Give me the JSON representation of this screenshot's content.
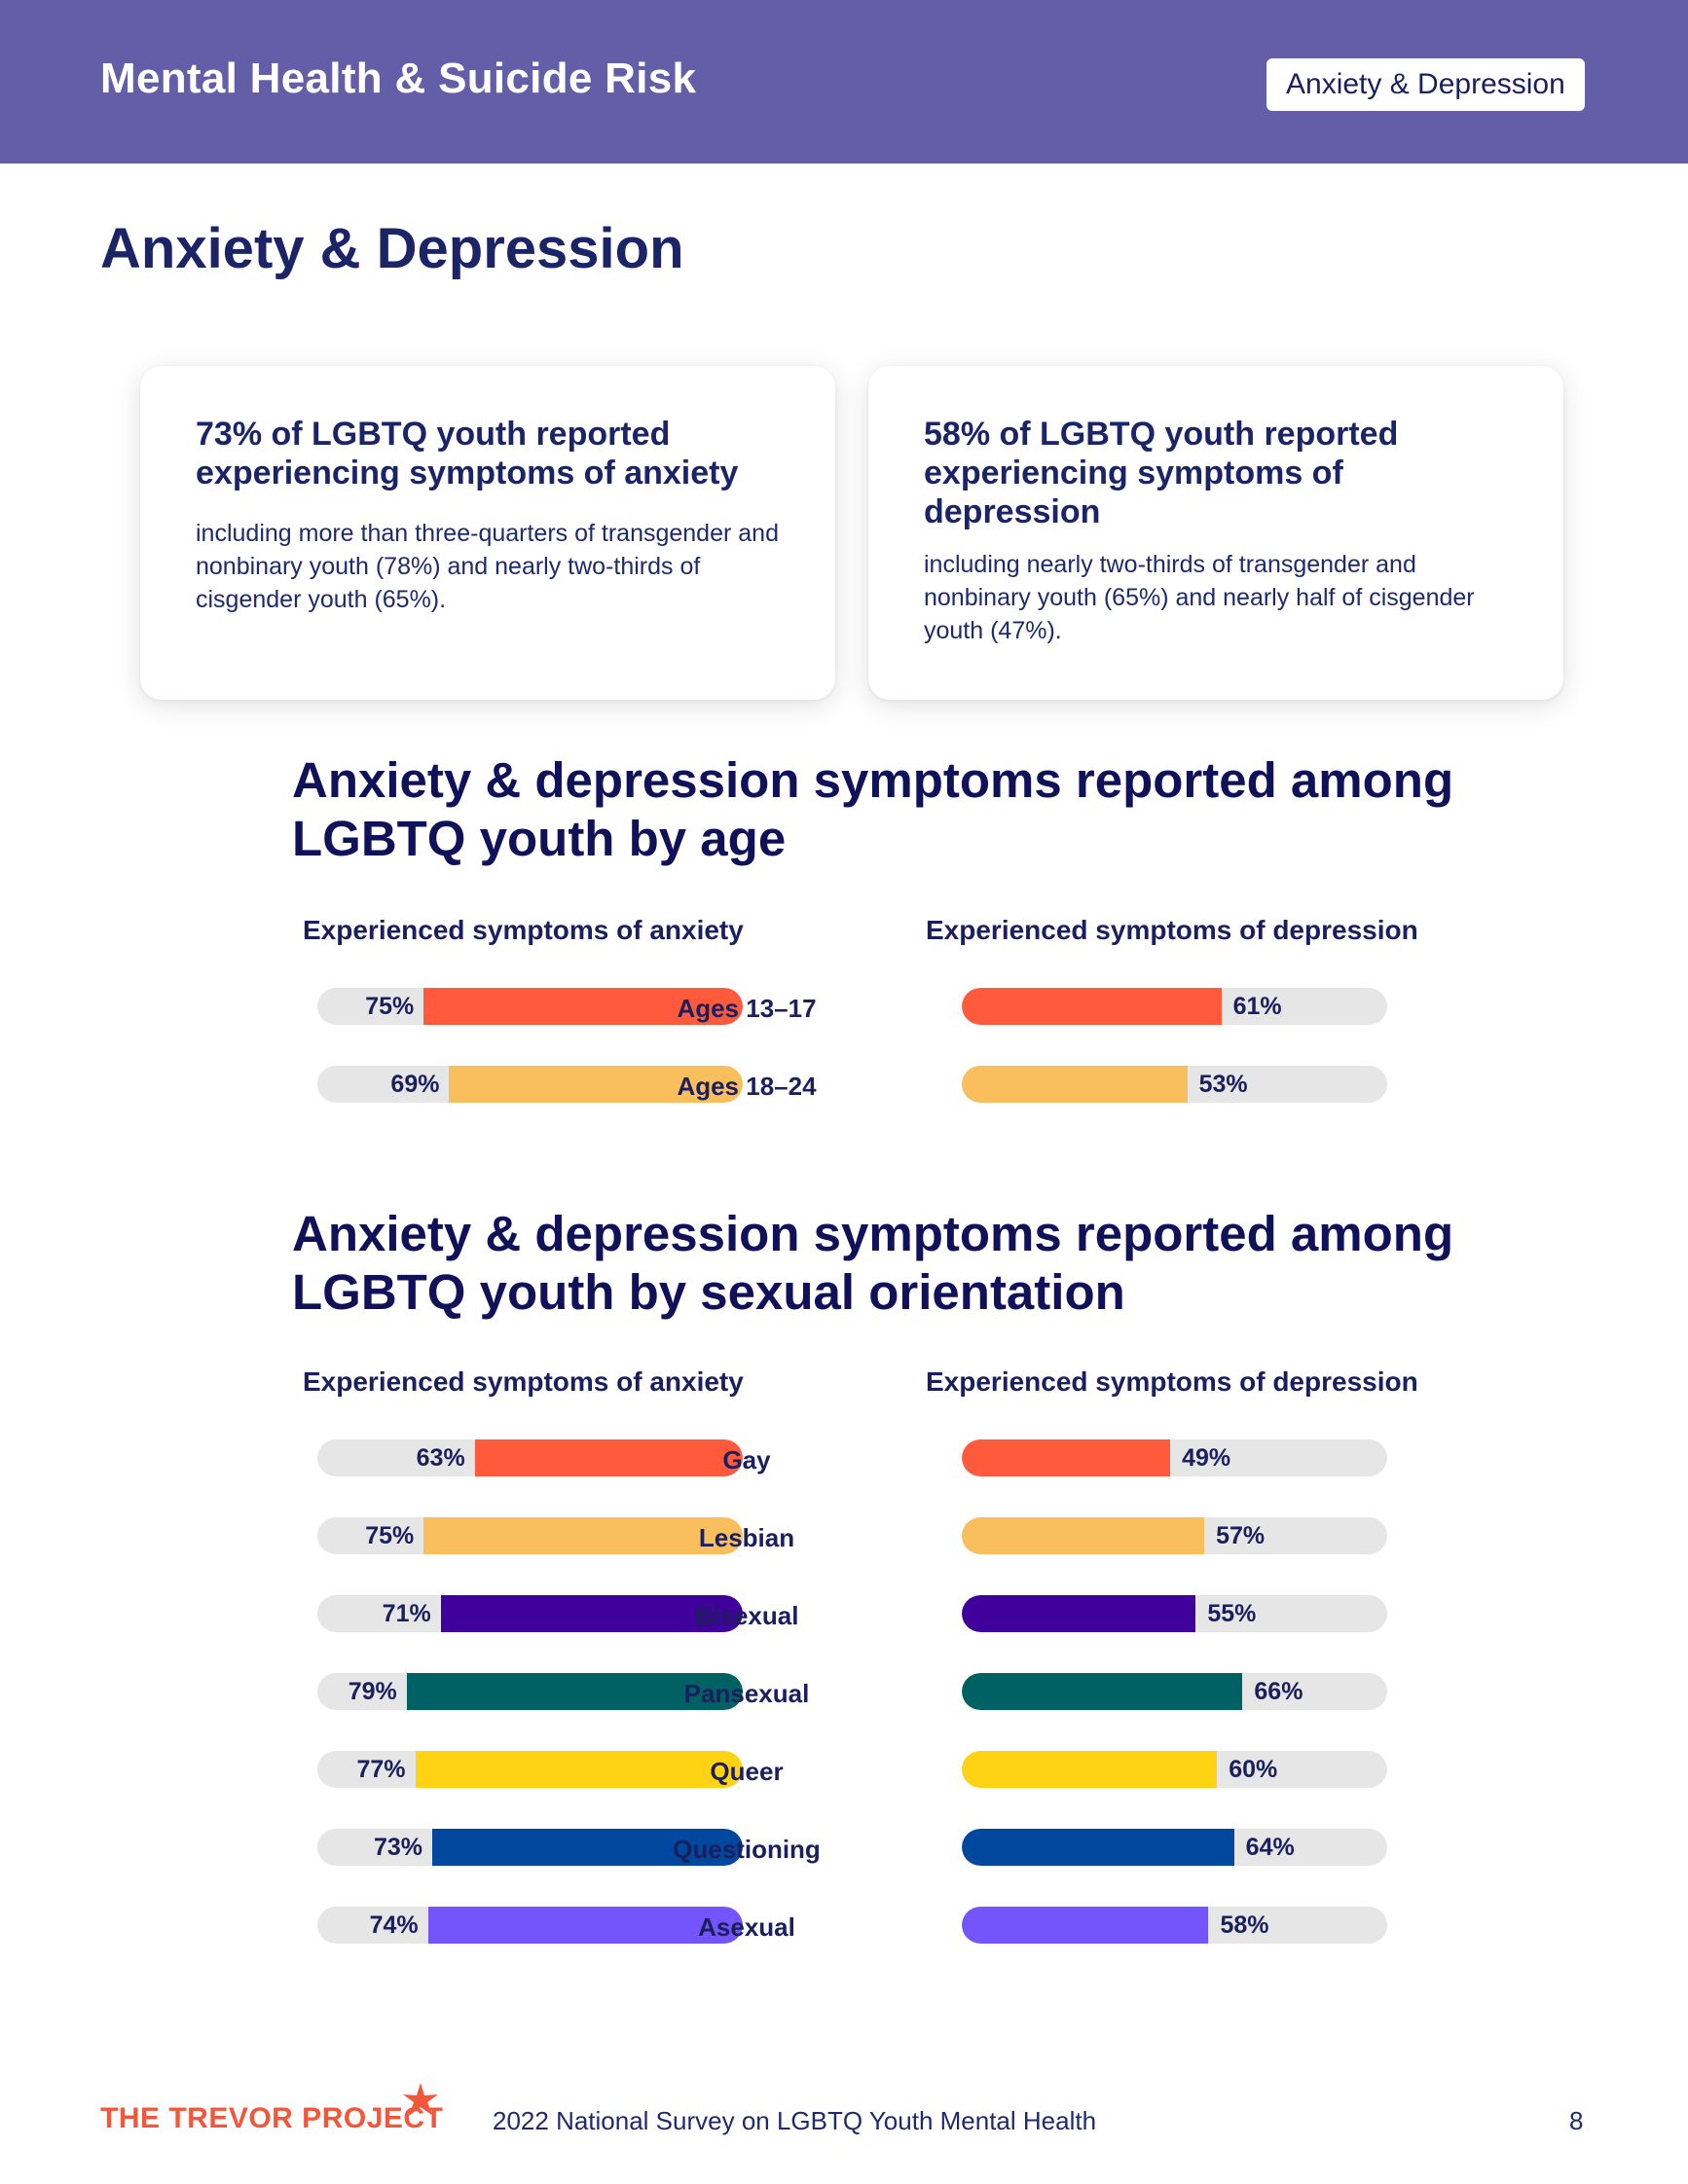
{
  "header": {
    "title": "Mental Health & Suicide Risk",
    "tag": "Anxiety & Depression"
  },
  "page_title": "Anxiety & Depression",
  "cards": [
    {
      "headline": "73% of LGBTQ youth reported experiencing symptoms of anxiety",
      "body": "including more than three-quarters of transgender and nonbinary youth (78%) and nearly two-thirds of cisgender youth (65%)."
    },
    {
      "headline": "58% of LGBTQ youth reported experiencing symptoms of depression",
      "body": "including nearly two-thirds of transgender and nonbinary youth (65%) and nearly half of cisgender youth (47%)."
    }
  ],
  "chart_data": [
    {
      "type": "bar",
      "title": "Anxiety & depression symptoms reported among LGBTQ youth by age",
      "left_header": "Experienced symptoms of anxiety",
      "right_header": "Experienced symptoms of depression",
      "categories": [
        "Ages 13–17",
        "Ages 18–24"
      ],
      "series": [
        {
          "name": "Experienced symptoms of anxiety",
          "values": [
            75,
            69
          ],
          "labels": [
            "75%",
            "69%"
          ]
        },
        {
          "name": "Experienced symptoms of depression",
          "values": [
            61,
            53
          ],
          "labels": [
            "61%",
            "53%"
          ]
        }
      ],
      "colors": [
        "#ff5a3c",
        "#f8bf5c"
      ],
      "ylim": [
        0,
        100
      ]
    },
    {
      "type": "bar",
      "title": "Anxiety & depression symptoms reported among LGBTQ youth by sexual orientation",
      "left_header": "Experienced symptoms of anxiety",
      "right_header": "Experienced symptoms of depression",
      "categories": [
        "Gay",
        "Lesbian",
        "Bisexual",
        "Pansexual",
        "Queer",
        "Questioning",
        "Asexual"
      ],
      "series": [
        {
          "name": "Experienced symptoms of anxiety",
          "values": [
            63,
            75,
            71,
            79,
            77,
            73,
            74
          ],
          "labels": [
            "63%",
            "75%",
            "71%",
            "79%",
            "77%",
            "73%",
            "74%"
          ]
        },
        {
          "name": "Experienced symptoms of depression",
          "values": [
            49,
            57,
            55,
            66,
            60,
            64,
            58
          ],
          "labels": [
            "49%",
            "57%",
            "55%",
            "66%",
            "60%",
            "64%",
            "58%"
          ]
        }
      ],
      "colors": [
        "#ff5a3c",
        "#f8bf5c",
        "#40009b",
        "#006164",
        "#ffd314",
        "#00479e",
        "#7454fb"
      ],
      "ylim": [
        0,
        100
      ]
    }
  ],
  "footer": {
    "logo_text": "THE TREVOR PROJECT",
    "survey_text": "2022 National Survey on LGBTQ Youth Mental Health",
    "page_number": "8"
  }
}
